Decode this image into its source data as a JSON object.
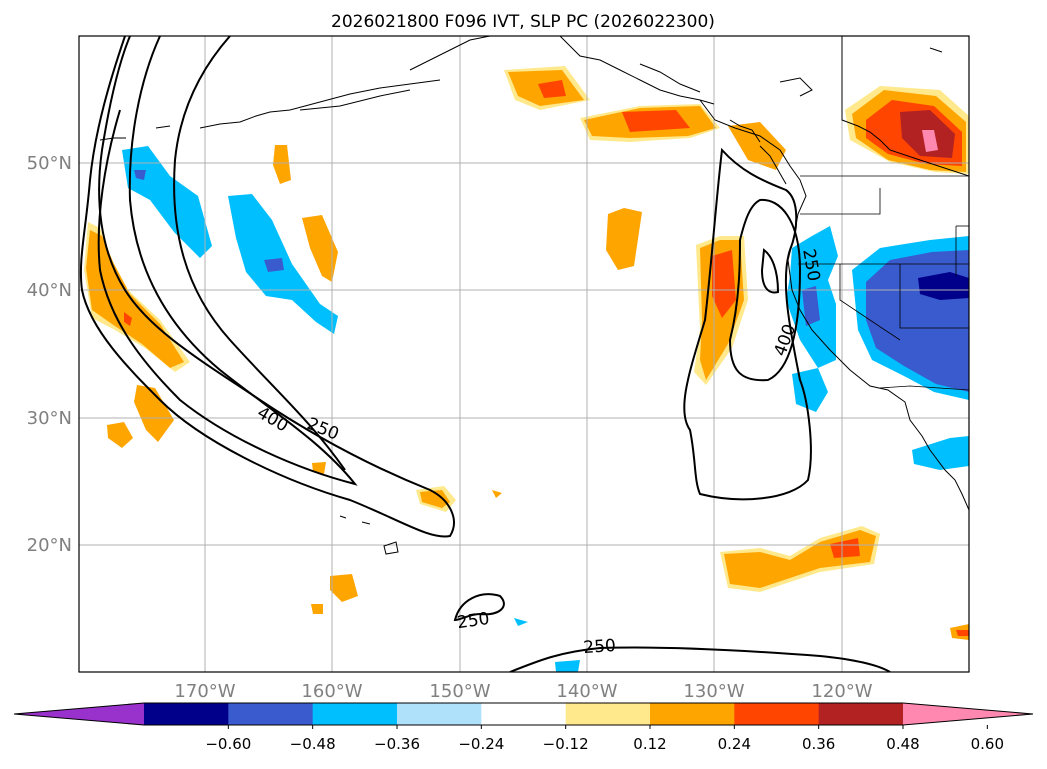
{
  "title": "2026021800 F096 IVT, SLP PC (2026022300)",
  "map": {
    "lon_labels": [
      "170°W",
      "160°W",
      "150°W",
      "140°W",
      "130°W",
      "120°W"
    ],
    "lat_labels": [
      "50°N",
      "40°N",
      "30°N",
      "20°N"
    ],
    "contour_labels": [
      "400",
      "250",
      "250",
      "250",
      "400",
      "250"
    ],
    "colors": {
      "land_outline": "#000000",
      "grid": "#b0b0b0",
      "axis_label": "#808080"
    }
  },
  "colorbar": {
    "ticks": [
      "−0.60",
      "−0.48",
      "−0.36",
      "−0.24",
      "−0.12",
      "0.12",
      "0.24",
      "0.36",
      "0.48",
      "0.60"
    ],
    "colors": [
      "#9932cc",
      "#00008b",
      "#3a5bcd",
      "#00bfff",
      "#afe1fb",
      "#ffffff",
      "#ffe98c",
      "#ffa500",
      "#ff4500",
      "#b22222",
      "#ff88b0"
    ]
  }
}
